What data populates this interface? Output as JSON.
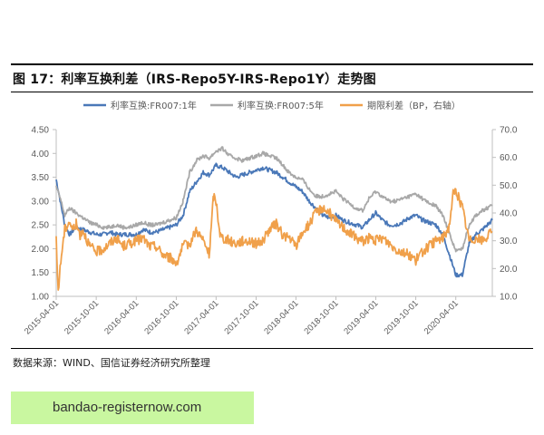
{
  "figure": {
    "title": "图 17：利率互换利差（IRS-Repo5Y-IRS-Repo1Y）走势图",
    "source": "数据来源：WIND、国信证券经济研究所整理"
  },
  "banner": {
    "text": "bandao-registernow.com"
  },
  "colors": {
    "s1": "#4a78b8",
    "s2": "#a8a8a8",
    "s3": "#f0a04a",
    "axis": "#bfbfbf",
    "text": "#595959"
  },
  "chart_data": {
    "type": "line",
    "title": "",
    "legend_position": "top",
    "grid": false,
    "x_ticks": [
      "2015-04-01",
      "2015-10-01",
      "2016-04-01",
      "2016-10-01",
      "2017-04-01",
      "2017-10-01",
      "2018-04-01",
      "2018-10-01",
      "2019-04-01",
      "2019-10-01",
      "2020-04-01"
    ],
    "x_range": [
      "2015-04-01",
      "2020-09-15"
    ],
    "y_left": {
      "min": 1.0,
      "max": 4.5,
      "ticks": [
        "1.00",
        "1.50",
        "2.00",
        "2.50",
        "3.00",
        "3.50",
        "4.00",
        "4.50"
      ]
    },
    "y_right": {
      "min": 10,
      "max": 70,
      "ticks": [
        "10.0",
        "20.0",
        "30.0",
        "40.0",
        "50.0",
        "60.0",
        "70.0"
      ]
    },
    "series": [
      {
        "name": "利率互换:FR007:1年",
        "axis": "left",
        "points": [
          [
            "2015-04-01",
            3.45
          ],
          [
            "2015-04-20",
            3.0
          ],
          [
            "2015-05-10",
            2.5
          ],
          [
            "2015-06-01",
            2.3
          ],
          [
            "2015-07-01",
            2.45
          ],
          [
            "2015-08-01",
            2.4
          ],
          [
            "2015-09-01",
            2.35
          ],
          [
            "2015-10-01",
            2.3
          ],
          [
            "2015-11-01",
            2.3
          ],
          [
            "2015-12-01",
            2.35
          ],
          [
            "2016-01-01",
            2.3
          ],
          [
            "2016-02-01",
            2.3
          ],
          [
            "2016-03-01",
            2.3
          ],
          [
            "2016-04-01",
            2.3
          ],
          [
            "2016-05-01",
            2.4
          ],
          [
            "2016-06-01",
            2.35
          ],
          [
            "2016-07-01",
            2.35
          ],
          [
            "2016-08-01",
            2.4
          ],
          [
            "2016-09-01",
            2.45
          ],
          [
            "2016-10-01",
            2.5
          ],
          [
            "2016-11-01",
            2.7
          ],
          [
            "2016-12-01",
            3.2
          ],
          [
            "2017-01-01",
            3.4
          ],
          [
            "2017-02-01",
            3.6
          ],
          [
            "2017-03-01",
            3.55
          ],
          [
            "2017-04-01",
            3.75
          ],
          [
            "2017-05-01",
            3.7
          ],
          [
            "2017-06-01",
            3.6
          ],
          [
            "2017-07-01",
            3.5
          ],
          [
            "2017-08-01",
            3.55
          ],
          [
            "2017-09-01",
            3.6
          ],
          [
            "2017-10-01",
            3.65
          ],
          [
            "2017-11-01",
            3.7
          ],
          [
            "2017-12-01",
            3.65
          ],
          [
            "2018-01-01",
            3.6
          ],
          [
            "2018-02-01",
            3.5
          ],
          [
            "2018-03-01",
            3.4
          ],
          [
            "2018-04-01",
            3.3
          ],
          [
            "2018-05-01",
            3.2
          ],
          [
            "2018-06-01",
            3.0
          ],
          [
            "2018-07-01",
            2.85
          ],
          [
            "2018-08-01",
            2.7
          ],
          [
            "2018-09-01",
            2.65
          ],
          [
            "2018-10-01",
            2.7
          ],
          [
            "2018-11-01",
            2.6
          ],
          [
            "2018-12-01",
            2.55
          ],
          [
            "2019-01-01",
            2.5
          ],
          [
            "2019-02-01",
            2.45
          ],
          [
            "2019-03-01",
            2.6
          ],
          [
            "2019-04-01",
            2.75
          ],
          [
            "2019-05-01",
            2.6
          ],
          [
            "2019-06-01",
            2.5
          ],
          [
            "2019-07-01",
            2.5
          ],
          [
            "2019-08-01",
            2.55
          ],
          [
            "2019-09-01",
            2.65
          ],
          [
            "2019-10-01",
            2.7
          ],
          [
            "2019-11-01",
            2.6
          ],
          [
            "2019-12-01",
            2.55
          ],
          [
            "2020-01-01",
            2.5
          ],
          [
            "2020-02-01",
            2.3
          ],
          [
            "2020-03-01",
            1.9
          ],
          [
            "2020-04-01",
            1.45
          ],
          [
            "2020-05-01",
            1.45
          ],
          [
            "2020-06-01",
            2.1
          ],
          [
            "2020-07-01",
            2.3
          ],
          [
            "2020-08-01",
            2.4
          ],
          [
            "2020-09-15",
            2.6
          ]
        ]
      },
      {
        "name": "利率互换:FR007:5年",
        "axis": "left",
        "points": [
          [
            "2015-04-01",
            3.3
          ],
          [
            "2015-04-20",
            3.05
          ],
          [
            "2015-05-10",
            2.7
          ],
          [
            "2015-06-01",
            2.85
          ],
          [
            "2015-07-01",
            2.75
          ],
          [
            "2015-08-01",
            2.65
          ],
          [
            "2015-09-01",
            2.55
          ],
          [
            "2015-10-01",
            2.5
          ],
          [
            "2015-11-01",
            2.45
          ],
          [
            "2015-12-01",
            2.45
          ],
          [
            "2016-01-01",
            2.5
          ],
          [
            "2016-02-01",
            2.45
          ],
          [
            "2016-03-01",
            2.45
          ],
          [
            "2016-04-01",
            2.5
          ],
          [
            "2016-05-01",
            2.55
          ],
          [
            "2016-06-01",
            2.5
          ],
          [
            "2016-07-01",
            2.5
          ],
          [
            "2016-08-01",
            2.55
          ],
          [
            "2016-09-01",
            2.6
          ],
          [
            "2016-10-01",
            2.65
          ],
          [
            "2016-11-01",
            3.0
          ],
          [
            "2016-12-01",
            3.6
          ],
          [
            "2017-01-01",
            3.85
          ],
          [
            "2017-02-01",
            3.95
          ],
          [
            "2017-03-01",
            3.9
          ],
          [
            "2017-04-01",
            4.05
          ],
          [
            "2017-05-01",
            4.1
          ],
          [
            "2017-06-01",
            3.95
          ],
          [
            "2017-07-01",
            3.9
          ],
          [
            "2017-08-01",
            3.85
          ],
          [
            "2017-09-01",
            3.9
          ],
          [
            "2017-10-01",
            3.95
          ],
          [
            "2017-11-01",
            4.0
          ],
          [
            "2017-12-01",
            3.95
          ],
          [
            "2018-01-01",
            3.9
          ],
          [
            "2018-02-01",
            3.75
          ],
          [
            "2018-03-01",
            3.6
          ],
          [
            "2018-04-01",
            3.5
          ],
          [
            "2018-05-01",
            3.45
          ],
          [
            "2018-06-01",
            3.25
          ],
          [
            "2018-07-01",
            3.1
          ],
          [
            "2018-08-01",
            3.1
          ],
          [
            "2018-09-01",
            3.15
          ],
          [
            "2018-10-01",
            3.2
          ],
          [
            "2018-11-01",
            3.05
          ],
          [
            "2018-12-01",
            2.95
          ],
          [
            "2019-01-01",
            2.85
          ],
          [
            "2019-02-01",
            2.8
          ],
          [
            "2019-03-01",
            3.05
          ],
          [
            "2019-04-01",
            3.2
          ],
          [
            "2019-05-01",
            3.1
          ],
          [
            "2019-06-01",
            3.0
          ],
          [
            "2019-07-01",
            3.0
          ],
          [
            "2019-08-01",
            3.05
          ],
          [
            "2019-09-01",
            3.1
          ],
          [
            "2019-10-01",
            3.15
          ],
          [
            "2019-11-01",
            3.05
          ],
          [
            "2019-12-01",
            2.95
          ],
          [
            "2020-01-01",
            2.9
          ],
          [
            "2020-02-01",
            2.7
          ],
          [
            "2020-03-01",
            2.35
          ],
          [
            "2020-04-01",
            1.95
          ],
          [
            "2020-05-01",
            2.0
          ],
          [
            "2020-06-01",
            2.5
          ],
          [
            "2020-07-01",
            2.7
          ],
          [
            "2020-08-01",
            2.8
          ],
          [
            "2020-09-15",
            2.9
          ]
        ]
      },
      {
        "name": "期限利差（BP，右轴）",
        "axis": "right",
        "points": [
          [
            "2015-04-01",
            30
          ],
          [
            "2015-04-10",
            12
          ],
          [
            "2015-04-25",
            25
          ],
          [
            "2015-05-10",
            34
          ],
          [
            "2015-06-01",
            37
          ],
          [
            "2015-06-15",
            34
          ],
          [
            "2015-07-01",
            36
          ],
          [
            "2015-07-20",
            32
          ],
          [
            "2015-08-01",
            34
          ],
          [
            "2015-09-01",
            28
          ],
          [
            "2015-10-01",
            26
          ],
          [
            "2015-11-01",
            27
          ],
          [
            "2015-12-01",
            29
          ],
          [
            "2016-01-01",
            31
          ],
          [
            "2016-02-01",
            28
          ],
          [
            "2016-03-01",
            29
          ],
          [
            "2016-04-01",
            30
          ],
          [
            "2016-05-01",
            31
          ],
          [
            "2016-06-01",
            28
          ],
          [
            "2016-07-01",
            28
          ],
          [
            "2016-08-01",
            25
          ],
          [
            "2016-09-01",
            24
          ],
          [
            "2016-10-01",
            22
          ],
          [
            "2016-11-01",
            28
          ],
          [
            "2016-12-01",
            29
          ],
          [
            "2017-01-01",
            34
          ],
          [
            "2017-02-01",
            30
          ],
          [
            "2017-03-01",
            25
          ],
          [
            "2017-03-20",
            46
          ],
          [
            "2017-04-01",
            44
          ],
          [
            "2017-04-20",
            32
          ],
          [
            "2017-05-01",
            31
          ],
          [
            "2017-06-01",
            30
          ],
          [
            "2017-07-01",
            29
          ],
          [
            "2017-08-01",
            30
          ],
          [
            "2017-09-01",
            30
          ],
          [
            "2017-10-01",
            29
          ],
          [
            "2017-11-01",
            30
          ],
          [
            "2017-12-01",
            34
          ],
          [
            "2018-01-01",
            36
          ],
          [
            "2018-02-01",
            32
          ],
          [
            "2018-03-01",
            31
          ],
          [
            "2018-04-01",
            28
          ],
          [
            "2018-05-01",
            33
          ],
          [
            "2018-06-01",
            36
          ],
          [
            "2018-07-01",
            40
          ],
          [
            "2018-08-01",
            42
          ],
          [
            "2018-09-01",
            40
          ],
          [
            "2018-10-01",
            37
          ],
          [
            "2018-11-01",
            35
          ],
          [
            "2018-12-01",
            33
          ],
          [
            "2019-01-01",
            31
          ],
          [
            "2019-02-01",
            30
          ],
          [
            "2019-03-01",
            31
          ],
          [
            "2019-04-01",
            30
          ],
          [
            "2019-05-01",
            31
          ],
          [
            "2019-06-01",
            29
          ],
          [
            "2019-07-01",
            27
          ],
          [
            "2019-08-01",
            26
          ],
          [
            "2019-09-01",
            25
          ],
          [
            "2019-10-01",
            23
          ],
          [
            "2019-11-01",
            26
          ],
          [
            "2019-12-01",
            28
          ],
          [
            "2020-01-01",
            30
          ],
          [
            "2020-02-01",
            31
          ],
          [
            "2020-03-01",
            35
          ],
          [
            "2020-03-20",
            47
          ],
          [
            "2020-04-01",
            48
          ],
          [
            "2020-05-01",
            42
          ],
          [
            "2020-06-01",
            30
          ],
          [
            "2020-07-01",
            31
          ],
          [
            "2020-08-01",
            30
          ],
          [
            "2020-09-15",
            33
          ]
        ]
      }
    ]
  }
}
